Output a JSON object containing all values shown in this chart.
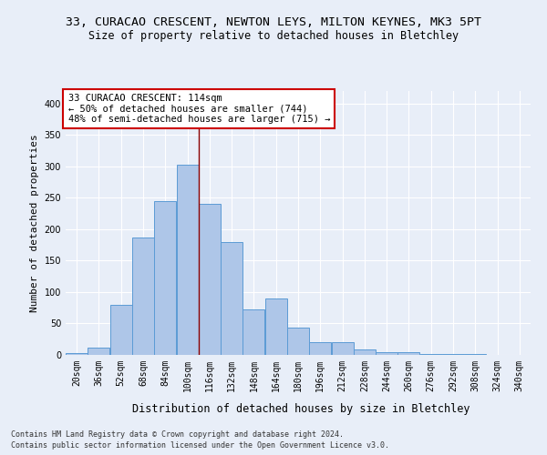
{
  "title_line1": "33, CURACAO CRESCENT, NEWTON LEYS, MILTON KEYNES, MK3 5PT",
  "title_line2": "Size of property relative to detached houses in Bletchley",
  "xlabel": "Distribution of detached houses by size in Bletchley",
  "ylabel": "Number of detached properties",
  "footnote1": "Contains HM Land Registry data © Crown copyright and database right 2024.",
  "footnote2": "Contains public sector information licensed under the Open Government Licence v3.0.",
  "bar_edges": [
    20,
    36,
    52,
    68,
    84,
    100,
    116,
    132,
    148,
    164,
    180,
    196,
    212,
    228,
    244,
    260,
    276,
    292,
    308,
    324,
    340
  ],
  "bar_values": [
    3,
    12,
    80,
    187,
    245,
    302,
    240,
    180,
    73,
    90,
    43,
    20,
    20,
    9,
    5,
    5,
    2,
    1,
    1,
    0
  ],
  "bar_color": "#aec6e8",
  "bar_edge_color": "#5b9bd5",
  "vline_x": 116,
  "vline_color": "#8b0000",
  "annotation_title": "33 CURACAO CRESCENT: 114sqm",
  "annotation_line1": "← 50% of detached houses are smaller (744)",
  "annotation_line2": "48% of semi-detached houses are larger (715) →",
  "box_color": "#ffffff",
  "box_edge_color": "#cc0000",
  "ylim": [
    0,
    420
  ],
  "yticks": [
    0,
    50,
    100,
    150,
    200,
    250,
    300,
    350,
    400
  ],
  "tick_labels": [
    "20sqm",
    "36sqm",
    "52sqm",
    "68sqm",
    "84sqm",
    "100sqm",
    "116sqm",
    "132sqm",
    "148sqm",
    "164sqm",
    "180sqm",
    "196sqm",
    "212sqm",
    "228sqm",
    "244sqm",
    "260sqm",
    "276sqm",
    "292sqm",
    "308sqm",
    "324sqm",
    "340sqm"
  ],
  "bg_color": "#e8eef8",
  "grid_color": "#ffffff",
  "title_fontsize": 9.5,
  "subtitle_fontsize": 8.5,
  "ylabel_fontsize": 8,
  "xlabel_fontsize": 8.5,
  "tick_fontsize": 7,
  "annot_fontsize": 7.5,
  "footnote_fontsize": 6
}
